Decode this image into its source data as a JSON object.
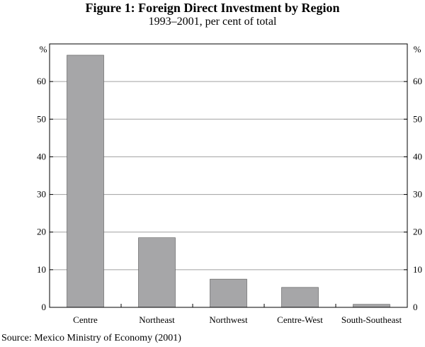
{
  "title": "Figure 1: Foreign Direct Investment by Region",
  "subtitle": "1993–2001, per cent of total",
  "source": "Source: Mexico Ministry of Economy (2001)",
  "chart_data": {
    "type": "bar",
    "title": "Figure 1: Foreign Direct Investment by Region",
    "subtitle": "1993–2001, per cent of total",
    "categories": [
      "Centre",
      "Northeast",
      "Northwest",
      "Centre-West",
      "South-Southeast"
    ],
    "values": [
      67,
      18.5,
      7.5,
      5.3,
      0.8
    ],
    "ylim": [
      0,
      70
    ],
    "yticks": [
      0,
      10,
      20,
      30,
      40,
      50,
      60
    ],
    "yunit_left": "%",
    "yunit_right": "%",
    "grid": true,
    "bar_color": "#a6a6a8"
  }
}
